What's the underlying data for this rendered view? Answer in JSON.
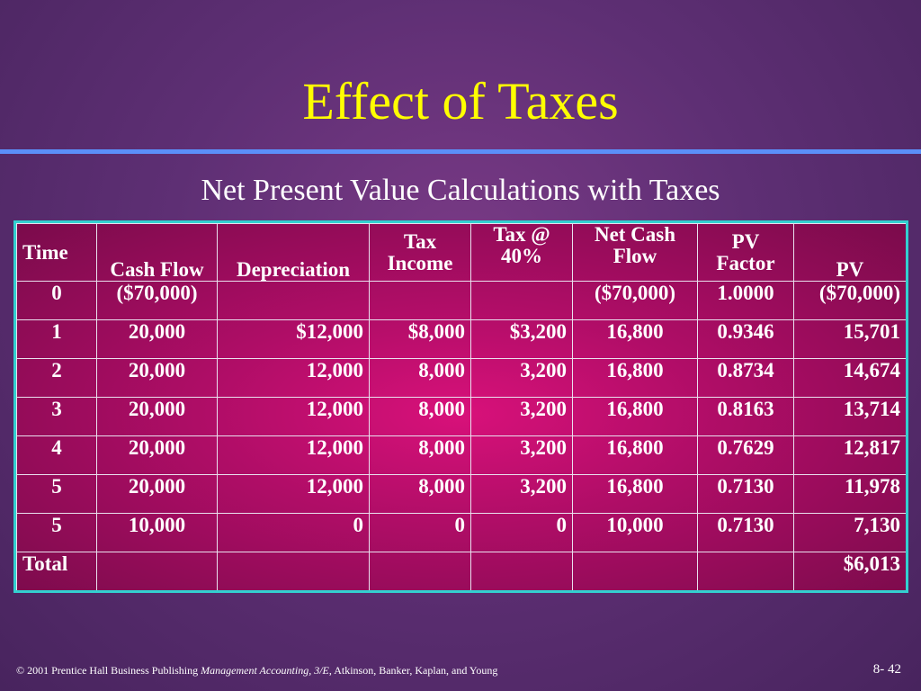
{
  "slide": {
    "title": "Effect of Taxes",
    "subtitle": "Net Present Value Calculations with Taxes"
  },
  "table": {
    "headers": {
      "time": "Time",
      "cash_flow": "Cash Flow",
      "depreciation": "Depreciation",
      "tax_income_1": "Tax",
      "tax_income_2": "Income",
      "tax_40_1": "Tax @",
      "tax_40_2": "40%",
      "ncf_1": "Net Cash",
      "ncf_2": "Flow",
      "pv_factor_1": "PV",
      "pv_factor_2": "Factor",
      "pv": "PV"
    },
    "rows": [
      {
        "time": "0",
        "cash_flow": "($70,000)",
        "depreciation": "",
        "tax_income": "",
        "tax": "",
        "net_cash_flow": "($70,000)",
        "pv_factor": "1.0000",
        "pv": "($70,000)"
      },
      {
        "time": "1",
        "cash_flow": "20,000",
        "depreciation": "$12,000",
        "tax_income": "$8,000",
        "tax": "$3,200",
        "net_cash_flow": "16,800",
        "pv_factor": "0.9346",
        "pv": "15,701"
      },
      {
        "time": "2",
        "cash_flow": "20,000",
        "depreciation": "12,000",
        "tax_income": "8,000",
        "tax": "3,200",
        "net_cash_flow": "16,800",
        "pv_factor": "0.8734",
        "pv": "14,674"
      },
      {
        "time": "3",
        "cash_flow": "20,000",
        "depreciation": "12,000",
        "tax_income": "8,000",
        "tax": "3,200",
        "net_cash_flow": "16,800",
        "pv_factor": "0.8163",
        "pv": "13,714"
      },
      {
        "time": "4",
        "cash_flow": "20,000",
        "depreciation": "12,000",
        "tax_income": "8,000",
        "tax": "3,200",
        "net_cash_flow": "16,800",
        "pv_factor": "0.7629",
        "pv": "12,817"
      },
      {
        "time": "5",
        "cash_flow": "20,000",
        "depreciation": "12,000",
        "tax_income": "8,000",
        "tax": "3,200",
        "net_cash_flow": "16,800",
        "pv_factor": "0.7130",
        "pv": "11,978"
      },
      {
        "time": "5",
        "cash_flow": "10,000",
        "depreciation": "0",
        "tax_income": "0",
        "tax": "0",
        "net_cash_flow": "10,000",
        "pv_factor": "0.7130",
        "pv": "7,130"
      }
    ],
    "total": {
      "label": "Total",
      "pv": "$6,013"
    }
  },
  "footer": {
    "copyright": "© 2001 Prentice Hall Business Publishing",
    "book": "Management Accounting, 3/E",
    "authors": ", Atkinson, Banker, Kaplan, and Young",
    "page": "8- 42"
  },
  "colors": {
    "background": "#5e2f74",
    "title": "#ffff00",
    "rule": "#5b8ff9",
    "table_fill": "#c20f70",
    "table_border": "#33d0d0"
  }
}
